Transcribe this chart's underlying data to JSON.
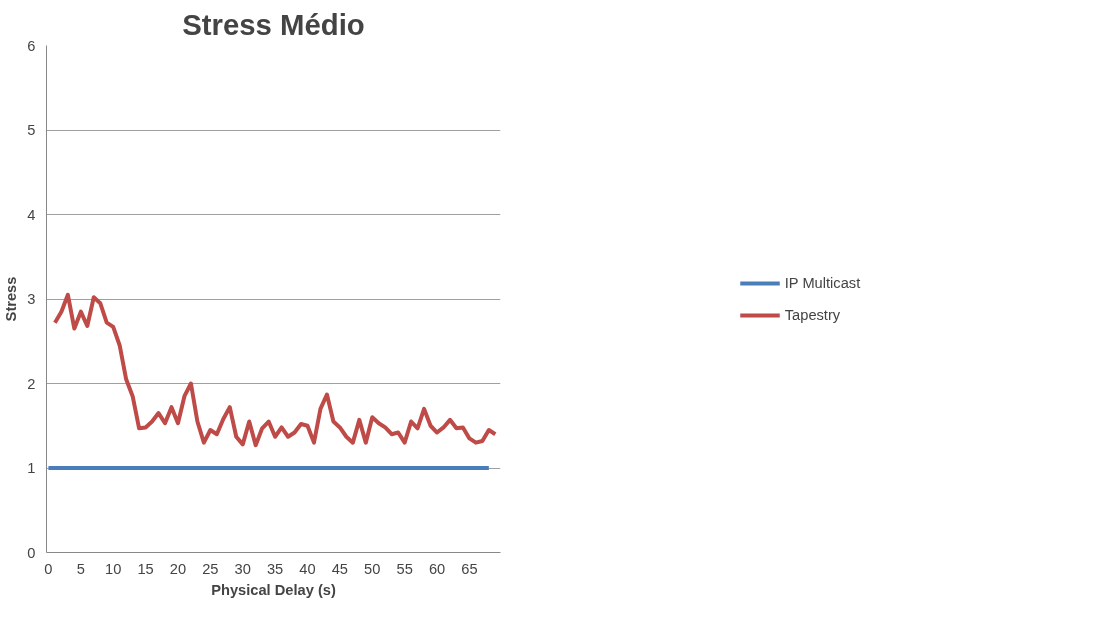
{
  "chart_data": {
    "type": "line",
    "title": "Stress Médio",
    "xlabel": "Physical Delay (s)",
    "ylabel": "Stress",
    "xlim": [
      -0.3,
      69.8
    ],
    "xticks": [
      0,
      5,
      10,
      15,
      20,
      25,
      30,
      35,
      40,
      45,
      50,
      55,
      60,
      65
    ],
    "ylim": [
      0,
      6
    ],
    "yticks": [
      0,
      1,
      2,
      3,
      4,
      5,
      6
    ],
    "grid": "y",
    "legend": "right",
    "marker": "none",
    "line_style": "solid",
    "series": [
      {
        "name": "IP Multicast",
        "color": "#4a7ebb",
        "x": [
          0,
          68
        ],
        "values": [
          1,
          1
        ]
      },
      {
        "name": "Tapestry",
        "color": "#be4b48",
        "x": [
          1,
          2,
          3,
          4,
          5,
          6,
          7,
          8,
          9,
          10,
          11,
          12,
          13,
          14,
          15,
          16,
          17,
          18,
          19,
          20,
          21,
          22,
          23,
          24,
          25,
          26,
          27,
          28,
          29,
          30,
          31,
          32,
          33,
          34,
          35,
          36,
          37,
          38,
          39,
          40,
          41,
          42,
          43,
          44,
          45,
          46,
          47,
          48,
          49,
          50,
          51,
          52,
          53,
          54,
          55,
          56,
          57,
          58,
          59,
          60,
          61,
          62,
          63,
          64,
          65,
          66,
          67,
          68,
          69
        ],
        "values": [
          2.72,
          2.85,
          3.05,
          2.65,
          2.85,
          2.68,
          3.02,
          2.95,
          2.72,
          2.67,
          2.45,
          2.05,
          1.85,
          1.47,
          1.48,
          1.55,
          1.65,
          1.53,
          1.72,
          1.53,
          1.85,
          2.0,
          1.55,
          1.3,
          1.45,
          1.4,
          1.58,
          1.72,
          1.37,
          1.28,
          1.55,
          1.27,
          1.47,
          1.55,
          1.37,
          1.48,
          1.37,
          1.42,
          1.52,
          1.5,
          1.3,
          1.7,
          1.87,
          1.55,
          1.48,
          1.37,
          1.3,
          1.57,
          1.3,
          1.6,
          1.53,
          1.48,
          1.4,
          1.42,
          1.3,
          1.55,
          1.47,
          1.7,
          1.5,
          1.42,
          1.48,
          1.57,
          1.47,
          1.48,
          1.35,
          1.3,
          1.32,
          1.45,
          1.4
        ]
      }
    ]
  }
}
